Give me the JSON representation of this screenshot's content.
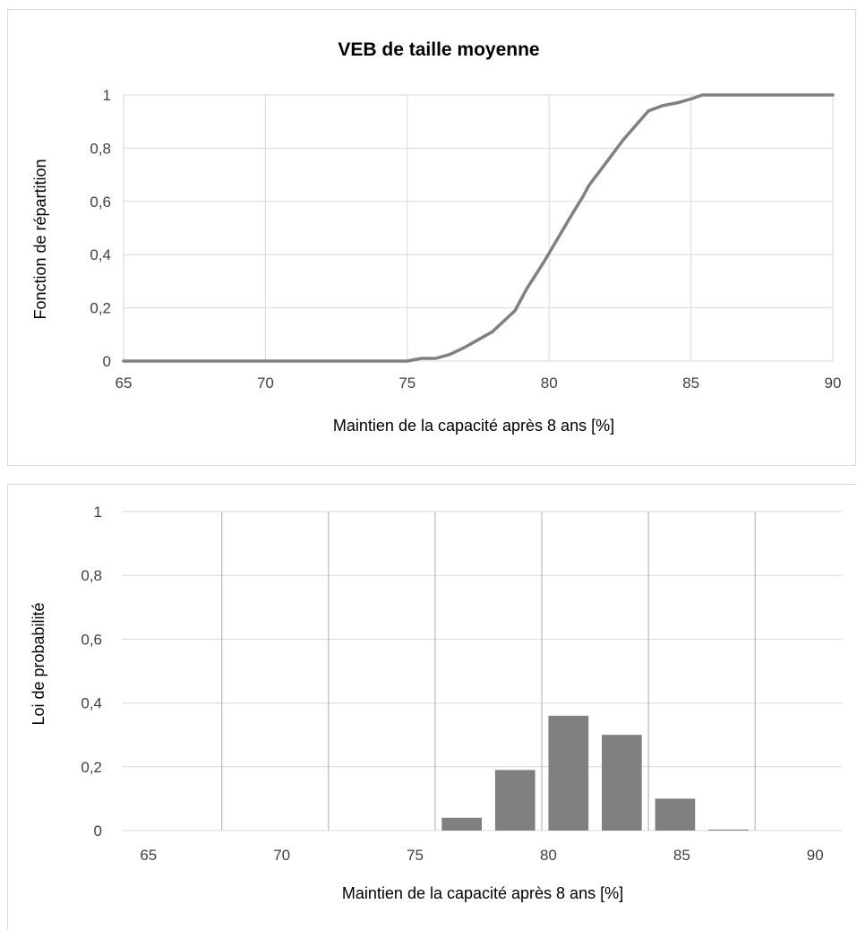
{
  "chart_data": [
    {
      "type": "line",
      "title": "VEB de taille moyenne",
      "xlabel": "Maintien de la capacité après 8 ans [%]",
      "ylabel": "Fonction de répartition",
      "xlim": [
        65,
        90
      ],
      "ylim": [
        0,
        1
      ],
      "x_ticks": [
        "65",
        "70",
        "75",
        "80",
        "85",
        "90"
      ],
      "y_ticks": [
        "0",
        "0,2",
        "0,4",
        "0,6",
        "0,8",
        "1"
      ],
      "grid": true,
      "series_color": "#808080",
      "series": [
        {
          "x": [
            65,
            75,
            75.5,
            76,
            76.5,
            77,
            77.5,
            78,
            78.5,
            78.8,
            79.2,
            79.8,
            80.3,
            80.8,
            81.2,
            81.4,
            81.9,
            82.6,
            83.5,
            84,
            84.5,
            85,
            85.4,
            86,
            90
          ],
          "y": [
            0,
            0,
            0.01,
            0.01,
            0.025,
            0.05,
            0.08,
            0.11,
            0.16,
            0.19,
            0.27,
            0.37,
            0.46,
            0.55,
            0.62,
            0.66,
            0.73,
            0.83,
            0.94,
            0.96,
            0.97,
            0.985,
            1,
            1,
            1
          ]
        }
      ]
    },
    {
      "type": "bar",
      "title": "",
      "xlabel": "Maintien de la capacité après 8 ans [%]",
      "ylabel": "Loi de probabilité",
      "xlim": [
        64,
        91
      ],
      "ylim": [
        0,
        1
      ],
      "x_ticks": [
        "65",
        "70",
        "75",
        "80",
        "85",
        "90"
      ],
      "y_ticks": [
        "0",
        "0,2",
        "0,4",
        "0,6",
        "0,8",
        "1"
      ],
      "grid": true,
      "bar_color": "#808080",
      "bars": [
        {
          "x": 76.75,
          "value": 0.04
        },
        {
          "x": 78.75,
          "value": 0.19
        },
        {
          "x": 80.75,
          "value": 0.36
        },
        {
          "x": 82.75,
          "value": 0.3
        },
        {
          "x": 84.75,
          "value": 0.1
        },
        {
          "x": 86.75,
          "value": 0.003
        }
      ]
    }
  ]
}
